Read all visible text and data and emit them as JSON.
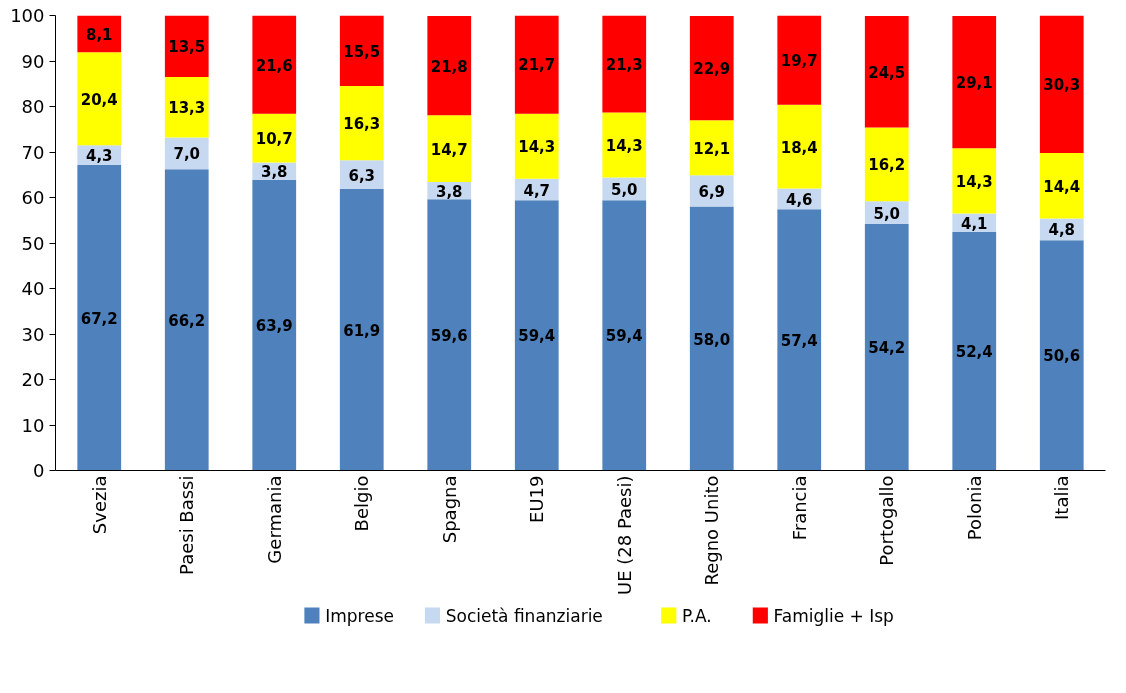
{
  "chart_data": {
    "type": "bar",
    "stacked": true,
    "categories": [
      "Svezia",
      "Paesi Bassi",
      "Germania",
      "Belgio",
      "Spagna",
      "EU19",
      "UE (28 Paesi)",
      "Regno Unito",
      "Francia",
      "Portogallo",
      "Polonia",
      "Italia"
    ],
    "series": [
      {
        "name": "Imprese",
        "color": "#4f81bd",
        "values": [
          67.2,
          66.2,
          63.9,
          61.9,
          59.6,
          59.4,
          59.4,
          58.0,
          57.4,
          54.2,
          52.4,
          50.6
        ],
        "value_labels": [
          "67,2",
          "66,2",
          "63,9",
          "61,9",
          "59,6",
          "59,4",
          "59,4",
          "58,0",
          "57,4",
          "54,2",
          "52,4",
          "50,6"
        ]
      },
      {
        "name": "Società finanziarie",
        "color": "#c6d9f1",
        "values": [
          4.3,
          7.0,
          3.8,
          6.3,
          3.8,
          4.7,
          5.0,
          6.9,
          4.6,
          5.0,
          4.1,
          4.8
        ],
        "value_labels": [
          "4,3",
          "7,0",
          "3,8",
          "6,3",
          "3,8",
          "4,7",
          "5,0",
          "6,9",
          "4,6",
          "5,0",
          "4,1",
          "4,8"
        ]
      },
      {
        "name": "P.A.",
        "color": "#ffff00",
        "values": [
          20.4,
          13.3,
          10.7,
          16.3,
          14.7,
          14.3,
          14.3,
          12.1,
          18.4,
          16.2,
          14.3,
          14.4
        ],
        "value_labels": [
          "20,4",
          "13,3",
          "10,7",
          "16,3",
          "14,7",
          "14,3",
          "14,3",
          "12,1",
          "18,4",
          "16,2",
          "14,3",
          "14,4"
        ]
      },
      {
        "name": "Famiglie + Isp",
        "color": "#ff0000",
        "values": [
          8.1,
          13.5,
          21.6,
          15.5,
          21.8,
          21.7,
          21.3,
          22.9,
          19.7,
          24.5,
          29.1,
          30.3
        ],
        "value_labels": [
          "8,1",
          "13,5",
          "21,6",
          "15,5",
          "21,8",
          "21,7",
          "21,3",
          "22,9",
          "19,7",
          "24,5",
          "29,1",
          "30,3"
        ]
      }
    ],
    "ylim": [
      0,
      100
    ],
    "yticks": [
      0,
      10,
      20,
      30,
      40,
      50,
      60,
      70,
      80,
      90,
      100
    ],
    "grid": false,
    "legend": "bottom"
  }
}
